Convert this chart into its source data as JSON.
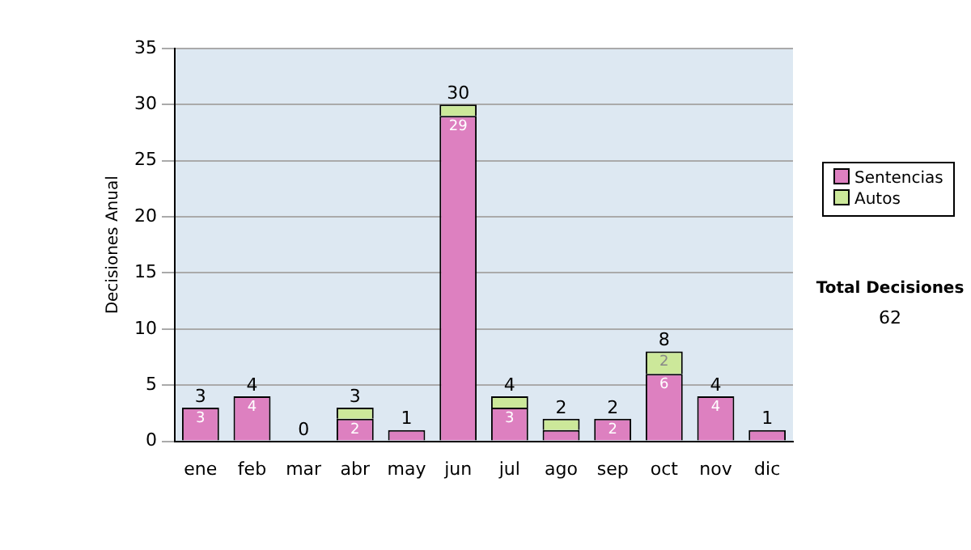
{
  "chart_data": {
    "type": "bar",
    "stacked": true,
    "ylabel": "Decisiones Anual",
    "categories": [
      "ene",
      "feb",
      "mar",
      "abr",
      "may",
      "jun",
      "jul",
      "ago",
      "sep",
      "oct",
      "nov",
      "dic"
    ],
    "series": [
      {
        "name": "Sentencias",
        "color": "#dd80c0",
        "values": [
          3,
          4,
          0,
          2,
          1,
          29,
          3,
          1,
          2,
          6,
          4,
          1
        ],
        "value_labels": [
          "3",
          "4",
          null,
          "2",
          null,
          "29",
          "3",
          null,
          "2",
          "6",
          "4",
          null
        ]
      },
      {
        "name": "Autos",
        "color": "#cce89a",
        "values": [
          0,
          0,
          0,
          1,
          0,
          1,
          1,
          1,
          0,
          2,
          0,
          0
        ],
        "value_labels": [
          null,
          null,
          null,
          null,
          null,
          null,
          null,
          null,
          null,
          "2",
          null,
          null
        ]
      }
    ],
    "totals": [
      "3",
      "4",
      "0",
      "3",
      "1",
      "30",
      "4",
      "2",
      "2",
      "8",
      "4",
      "1"
    ],
    "ylim": [
      0,
      35
    ],
    "yticks": [
      0,
      5,
      10,
      15,
      20,
      25,
      30,
      35
    ],
    "grid": "y",
    "legend": "right",
    "annotations": [
      "Total Decisiones",
      "62"
    ]
  }
}
